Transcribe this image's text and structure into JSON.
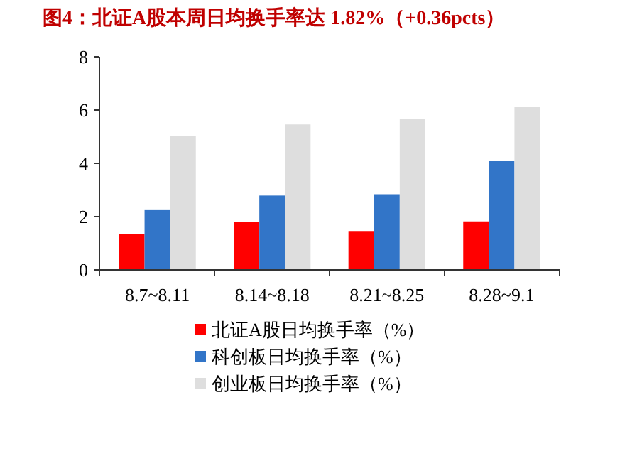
{
  "chart_data": {
    "type": "bar",
    "title": "图4：北证A股本周日均换手率达 1.82%（+0.36pcts）",
    "categories": [
      "8.7~8.11",
      "8.14~8.18",
      "8.21~8.25",
      "8.28~9.1"
    ],
    "series": [
      {
        "name": "北证A股日均换手率（%）",
        "color": "#ff0000",
        "values": [
          1.34,
          1.79,
          1.46,
          1.82
        ]
      },
      {
        "name": "科创板日均换手率（%）",
        "color": "#3275c8",
        "values": [
          2.27,
          2.79,
          2.84,
          4.09
        ]
      },
      {
        "name": "创业板日均换手率（%）",
        "color": "#dedede",
        "values": [
          5.04,
          5.46,
          5.68,
          6.13
        ]
      }
    ],
    "ylim": [
      0,
      8
    ],
    "yticks": [
      0,
      2,
      4,
      6,
      8
    ],
    "grid": false,
    "legend": "bottom"
  }
}
